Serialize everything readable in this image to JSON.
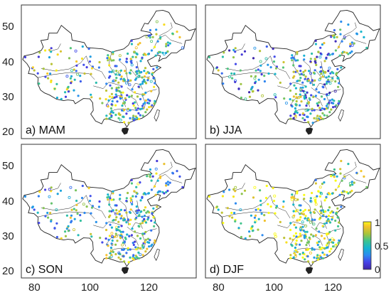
{
  "figure": {
    "panels": [
      {
        "id": "a",
        "label": "a) MAM"
      },
      {
        "id": "b",
        "label": "b) JJA"
      },
      {
        "id": "c",
        "label": "c) SON"
      },
      {
        "id": "d",
        "label": "d) DJF"
      }
    ],
    "x_ticks": [
      "80",
      "100",
      "120"
    ],
    "y_ticks": [
      "20",
      "30",
      "40",
      "50"
    ],
    "colorbar": {
      "ticks": [
        "1",
        "0.5",
        "0"
      ],
      "range": [
        0,
        1
      ],
      "colormap": "parula"
    },
    "colors": {
      "boundary": "#222222",
      "frame": "#333333"
    }
  },
  "chart_data": {
    "type": "map-scatter",
    "region": "China",
    "xlim": [
      73,
      135
    ],
    "ylim": [
      17,
      55
    ],
    "x_ticks": [
      80,
      100,
      120
    ],
    "y_ticks": [
      20,
      30,
      40,
      50
    ],
    "color_range": [
      0,
      1
    ],
    "grid": false,
    "panels": [
      "a) MAM",
      "b) JJA",
      "c) SON",
      "d) DJF"
    ]
  }
}
